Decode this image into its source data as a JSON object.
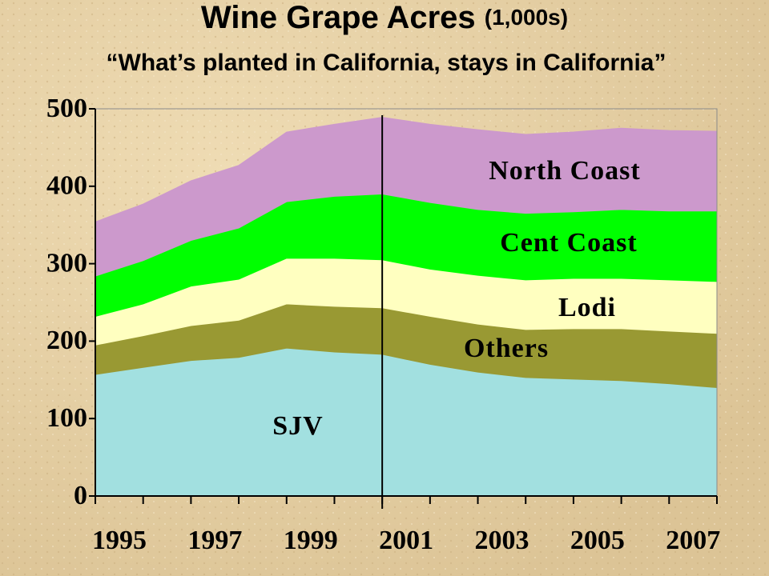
{
  "chart_data": {
    "type": "stacked-area",
    "title": "Wine Grape Acres",
    "title_note": "(1,000s)",
    "subtitle": "“What’s planted in California, stays in California”",
    "categories": [
      "1995",
      null,
      "1997",
      null,
      "1999",
      null,
      "2001",
      null,
      "2003",
      null,
      "2005",
      null,
      "2007",
      null
    ],
    "series": [
      {
        "name": "SJV",
        "color": "#a2e0e0",
        "values": [
          157,
          166,
          175,
          179,
          191,
          186,
          183,
          170,
          160,
          153,
          151,
          149,
          145,
          140
        ]
      },
      {
        "name": "Others",
        "color": "#999933",
        "values": [
          38,
          41,
          45,
          48,
          57,
          59,
          60,
          62,
          62,
          62,
          65,
          67,
          68,
          70
        ]
      },
      {
        "name": "Lodi",
        "color": "#ffffc0",
        "values": [
          37,
          41,
          51,
          53,
          59,
          62,
          62,
          61,
          63,
          64,
          65,
          65,
          66,
          67
        ]
      },
      {
        "name": "Cent Coast",
        "color": "#00ff00",
        "values": [
          52,
          56,
          59,
          66,
          73,
          80,
          85,
          86,
          85,
          86,
          86,
          89,
          89,
          91
        ]
      },
      {
        "name": "North Coast",
        "color": "#cc99cc",
        "values": [
          70,
          73,
          77,
          81,
          90,
          93,
          99,
          101,
          103,
          102,
          103,
          105,
          104,
          103
        ]
      }
    ],
    "ylim": [
      0,
      500
    ],
    "yticks": [
      0,
      100,
      200,
      300,
      400,
      500
    ],
    "grid": false
  }
}
